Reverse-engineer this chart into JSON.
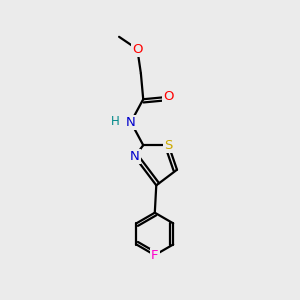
{
  "bg_color": "#ebebeb",
  "bond_color": "#000000",
  "bond_width": 1.6,
  "atom_colors": {
    "O": "#ff0000",
    "N": "#0000cc",
    "S": "#ccaa00",
    "F": "#ff00cc",
    "C": "#000000",
    "H": "#008888"
  },
  "font_size": 9.5,
  "fig_size": [
    3.0,
    3.0
  ],
  "dpi": 100
}
